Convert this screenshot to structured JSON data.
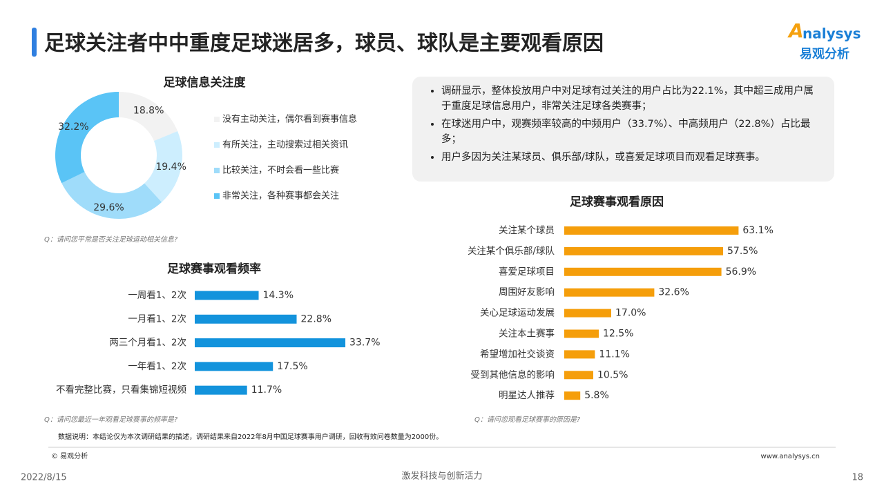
{
  "header": {
    "title": "足球关注者中中重度足球迷居多，球员、球队是主要观看原因",
    "logo_mark": "nalysys",
    "logo_name": "易观分析"
  },
  "bullets": [
    "调研显示，整体投放用户中对足球有过关注的用户占比为22.1%，其中超三成用户属于重度足球信息用户，非常关注足球各类赛事；",
    "在球迷用户中，观赛频率较高的中频用户（33.7%）、中高频用户（22.8%）占比最多；",
    "用户多因为关注某球员、俱乐部/球队，或喜爱足球项目而观看足球赛事。"
  ],
  "chart_data": [
    {
      "type": "pie",
      "title": "足球信息关注度",
      "categories": [
        "没有主动关注，偶尔看到赛事信息",
        "有所关注，主动搜索过相关资讯",
        "比较关注，不时会看一些比赛",
        "非常关注，各种赛事都会关注"
      ],
      "values": [
        18.8,
        19.4,
        29.6,
        32.2
      ],
      "value_labels": [
        "18.8%",
        "19.4%",
        "29.6%",
        "32.2%"
      ],
      "colors": [
        "#f2f2f2",
        "#cdeefe",
        "#9fdcfa",
        "#5ac4f6"
      ],
      "note": "Q：请问您平常是否关注足球运动相关信息?"
    },
    {
      "type": "bar",
      "title": "足球赛事观看频率",
      "categories": [
        "一周看1、2次",
        "一月看1、2次",
        "两三个月看1、2次",
        "一年看1、2次",
        "不看完整比赛，只看集锦短视频"
      ],
      "values": [
        14.3,
        22.8,
        33.7,
        17.5,
        11.7
      ],
      "value_labels": [
        "14.3%",
        "22.8%",
        "33.7%",
        "17.5%",
        "11.7%"
      ],
      "color": "#1393dc",
      "note": "Q：请问您最近一年观看足球赛事的频率是?"
    },
    {
      "type": "bar",
      "title": "足球赛事观看原因",
      "categories": [
        "关注某个球员",
        "关注某个俱乐部/球队",
        "喜爱足球项目",
        "周围好友影响",
        "关心足球运动发展",
        "关注本土赛事",
        "希望增加社交谈资",
        "受到其他信息的影响",
        "明星达人推荐"
      ],
      "values": [
        63.1,
        57.5,
        56.9,
        32.6,
        17.0,
        12.5,
        11.1,
        10.5,
        5.8
      ],
      "value_labels": [
        "63.1%",
        "57.5%",
        "56.9%",
        "32.6%",
        "17.0%",
        "12.5%",
        "11.1%",
        "10.5%",
        "5.8%"
      ],
      "color": "#f59e0b",
      "note": "Q：请问您观看足球赛事的原因是?"
    }
  ],
  "footer": {
    "data_note": "数据说明：本结论仅为本次调研结果的描述，调研结果来自2022年8月中国足球赛事用户调研，回收有效问卷数量为2000份。",
    "copyright": "© 易观分析",
    "website": "www.analysys.cn",
    "date": "2022/8/15",
    "slogan": "激发科技与创新活力",
    "page": "18"
  }
}
